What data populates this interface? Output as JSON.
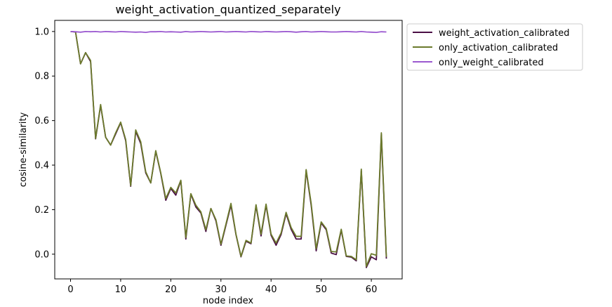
{
  "chart_data": {
    "type": "line",
    "title": "weight_activation_quantized_separately",
    "xlabel": "node index",
    "ylabel": "cosine-similarity",
    "xlim": [
      -3.15,
      66.15
    ],
    "ylim": [
      -0.111,
      1.05
    ],
    "xticks": [
      "0",
      "10",
      "20",
      "30",
      "40",
      "50",
      "60"
    ],
    "yticks": [
      "0.0",
      "0.2",
      "0.4",
      "0.6",
      "0.8",
      "1.0"
    ],
    "legend_position": "outside-top-right",
    "grid": false,
    "colors": {
      "frame": "#000000",
      "legend_border": "#cccccc"
    },
    "series": [
      {
        "name": "weight_activation_calibrated",
        "color": "#4a0f45",
        "values": [
          1.0,
          0.998,
          0.855,
          0.905,
          0.865,
          0.518,
          0.668,
          0.525,
          0.49,
          0.54,
          0.59,
          0.51,
          0.305,
          0.552,
          0.497,
          0.365,
          0.32,
          0.462,
          0.362,
          0.242,
          0.295,
          0.265,
          0.33,
          0.068,
          0.27,
          0.212,
          0.185,
          0.102,
          0.205,
          0.15,
          0.04,
          0.13,
          0.22,
          0.088,
          -0.012,
          0.058,
          0.047,
          0.218,
          0.082,
          0.22,
          0.085,
          0.04,
          0.088,
          0.182,
          0.112,
          0.068,
          0.068,
          0.375,
          0.22,
          0.015,
          0.14,
          0.11,
          0.005,
          -0.002,
          0.108,
          -0.01,
          -0.013,
          -0.03,
          0.375,
          -0.06,
          -0.012,
          -0.025,
          0.538,
          -0.02
        ]
      },
      {
        "name": "only_activation_calibrated",
        "color": "#6b7a2c",
        "values": [
          1.0,
          0.998,
          0.855,
          0.905,
          0.87,
          0.52,
          0.672,
          0.525,
          0.49,
          0.545,
          0.593,
          0.515,
          0.308,
          0.558,
          0.505,
          0.37,
          0.32,
          0.465,
          0.365,
          0.25,
          0.3,
          0.275,
          0.332,
          0.075,
          0.272,
          0.22,
          0.19,
          0.11,
          0.205,
          0.155,
          0.045,
          0.135,
          0.228,
          0.09,
          -0.01,
          0.062,
          0.05,
          0.222,
          0.09,
          0.225,
          0.09,
          0.05,
          0.095,
          0.188,
          0.12,
          0.08,
          0.08,
          0.38,
          0.228,
          0.025,
          0.145,
          0.115,
          0.012,
          0.01,
          0.112,
          -0.008,
          -0.01,
          -0.025,
          0.382,
          -0.055,
          0.002,
          -0.005,
          0.545,
          -0.012
        ]
      },
      {
        "name": "only_weight_calibrated",
        "color": "#9b59d0",
        "values": [
          1.0,
          0.999,
          0.997,
          1.0,
          0.999,
          1.0,
          0.998,
          1.0,
          0.999,
          0.998,
          1.0,
          0.999,
          0.998,
          0.997,
          0.998,
          0.996,
          0.999,
          0.999,
          1.0,
          0.998,
          0.999,
          0.998,
          0.997,
          1.0,
          0.998,
          0.999,
          1.0,
          0.999,
          0.998,
          0.999,
          1.0,
          0.998,
          0.999,
          1.0,
          0.999,
          0.998,
          1.0,
          0.999,
          0.998,
          1.0,
          0.999,
          0.998,
          0.999,
          1.0,
          0.999,
          0.997,
          0.999,
          1.0,
          0.998,
          0.999,
          1.0,
          0.999,
          0.998,
          0.998,
          0.999,
          1.0,
          0.999,
          0.998,
          1.0,
          0.998,
          0.997,
          0.996,
          0.999,
          0.998
        ]
      }
    ]
  }
}
